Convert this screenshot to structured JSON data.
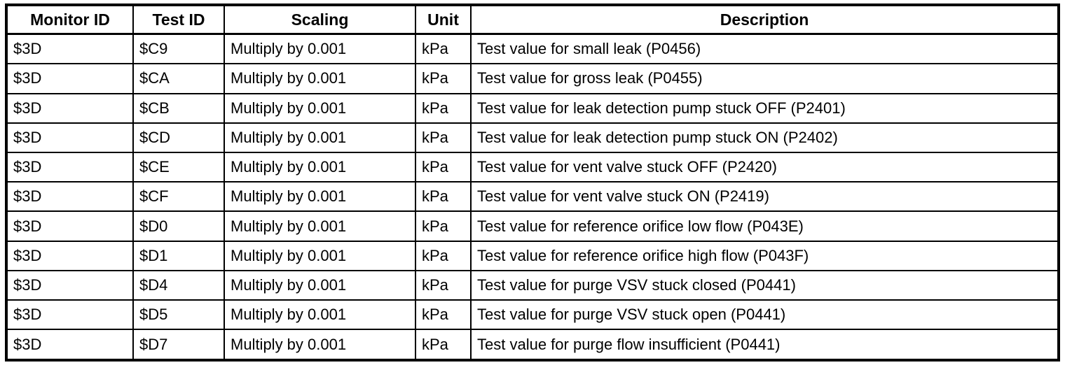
{
  "colors": {
    "border": "#000000",
    "background": "#ffffff",
    "text": "#000000"
  },
  "table": {
    "columns": [
      {
        "key": "monitor-id",
        "label": "Monitor ID"
      },
      {
        "key": "test-id",
        "label": "Test ID"
      },
      {
        "key": "scaling",
        "label": "Scaling"
      },
      {
        "key": "unit",
        "label": "Unit"
      },
      {
        "key": "description",
        "label": "Description"
      }
    ],
    "rows": [
      [
        "$3D",
        "$C9",
        "Multiply by 0.001",
        "kPa",
        "Test value for small leak (P0456)"
      ],
      [
        "$3D",
        "$CA",
        "Multiply by 0.001",
        "kPa",
        "Test value for gross leak (P0455)"
      ],
      [
        "$3D",
        "$CB",
        "Multiply by 0.001",
        "kPa",
        "Test value for leak detection pump stuck OFF (P2401)"
      ],
      [
        "$3D",
        "$CD",
        "Multiply by 0.001",
        "kPa",
        "Test value for leak detection pump stuck ON (P2402)"
      ],
      [
        "$3D",
        "$CE",
        "Multiply by 0.001",
        "kPa",
        "Test value for vent valve stuck OFF (P2420)"
      ],
      [
        "$3D",
        "$CF",
        "Multiply by 0.001",
        "kPa",
        "Test value for vent valve stuck ON (P2419)"
      ],
      [
        "$3D",
        "$D0",
        "Multiply by 0.001",
        "kPa",
        "Test value for reference orifice low flow (P043E)"
      ],
      [
        "$3D",
        "$D1",
        "Multiply by 0.001",
        "kPa",
        "Test value for reference orifice high flow (P043F)"
      ],
      [
        "$3D",
        "$D4",
        "Multiply by 0.001",
        "kPa",
        "Test value for purge VSV stuck closed (P0441)"
      ],
      [
        "$3D",
        "$D5",
        "Multiply by 0.001",
        "kPa",
        "Test value for purge VSV stuck open (P0441)"
      ],
      [
        "$3D",
        "$D7",
        "Multiply by 0.001",
        "kPa",
        "Test value for purge flow insufficient (P0441)"
      ]
    ]
  }
}
